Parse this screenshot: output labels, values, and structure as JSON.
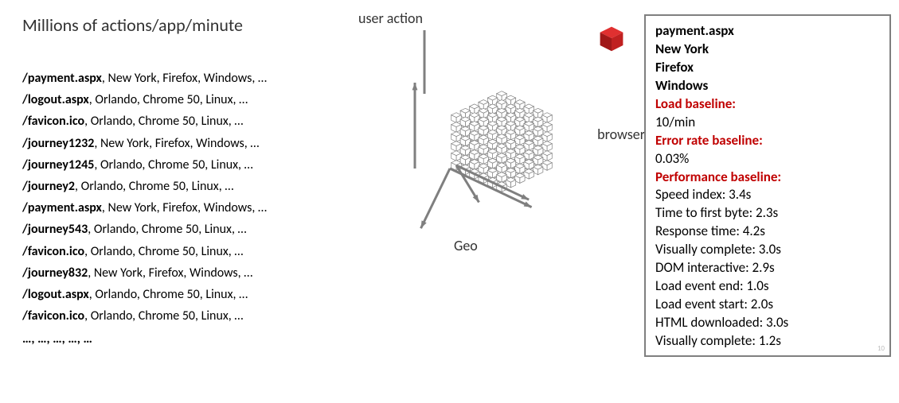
{
  "title": "Millions of actions/app/minute",
  "actions": [
    {
      "path": "/payment.aspx",
      "rest": ", New York, Firefox, Windows, …"
    },
    {
      "path": "/logout.aspx",
      "rest": ", Orlando, Chrome 50, Linux, …"
    },
    {
      "path": "/favicon.ico",
      "rest": ", Orlando, Chrome 50, Linux, …"
    },
    {
      "path": "/journey1232",
      "rest": ", New York, Firefox, Windows, …"
    },
    {
      "path": "/journey1245",
      "rest": ", Orlando, Chrome 50, Linux, …"
    },
    {
      "path": "/journey2",
      "rest": ", Orlando, Chrome 50, Linux, …"
    },
    {
      "path": "/payment.aspx",
      "rest": ", New York, Firefox, Windows, …"
    },
    {
      "path": "/journey543",
      "rest": ", Orlando, Chrome 50, Linux, …"
    },
    {
      "path": "/favicon.ico",
      "rest": ", Orlando, Chrome 50, Linux, …"
    },
    {
      "path": "/journey832",
      "rest": ", New York, Firefox, Windows, …"
    },
    {
      "path": "/logout.aspx",
      "rest": ", Orlando, Chrome 50, Linux, …"
    },
    {
      "path": "/favicon.ico",
      "rest": ", Orlando, Chrome 50, Linux, …"
    }
  ],
  "ellipsis": "…, …, …, …, …",
  "axes": {
    "user_action": "user action",
    "browser": "browser",
    "geo": "Geo"
  },
  "cube_render": {
    "grid_count": 6,
    "cell_size": 12,
    "stroke": "#7f7f7f",
    "fill": "#ffffff",
    "axis_stroke": "#7f7f7f",
    "axis_width": 3
  },
  "red_cube": {
    "top": "#e03030",
    "left": "#a01818",
    "right": "#c02020"
  },
  "detail": {
    "header": [
      "payment.aspx",
      "New York",
      "Firefox",
      "Windows"
    ],
    "load_baseline_label": "Load baseline:",
    "load_baseline_value": "10/min",
    "error_baseline_label": "Error rate baseline:",
    "error_baseline_value": "0.03%",
    "perf_baseline_label": "Performance baseline:",
    "metrics": [
      "Speed index: 3.4s",
      "Time to first byte: 2.3s",
      "Response time: 4.2s",
      "Visually complete: 3.0s",
      "DOM interactive: 2.9s",
      "Load event end: 1.0s",
      "Load event start: 2.0s",
      "HTML downloaded: 3.0s",
      "Visually complete: 1.2s"
    ]
  },
  "page_number": "10"
}
